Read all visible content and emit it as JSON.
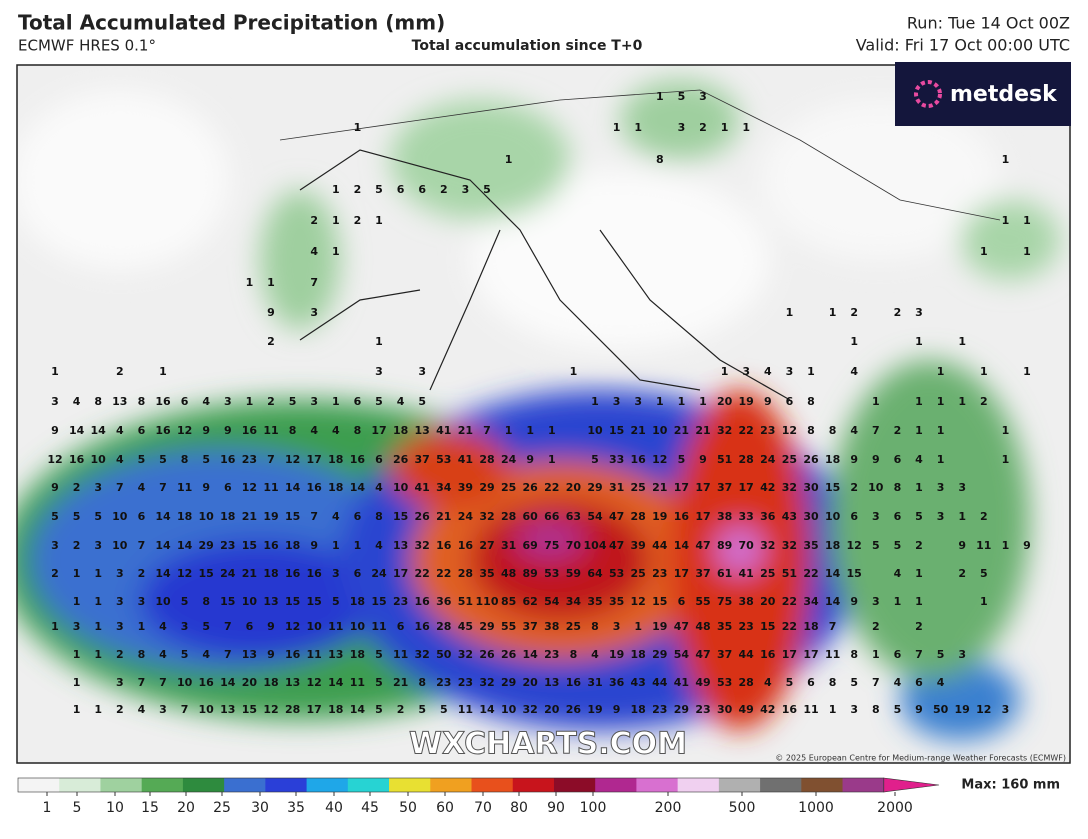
{
  "header": {
    "title": "Total Accumulated Precipitation (mm)",
    "model": "ECMWF HRES 0.1°",
    "subtitle": "Total accumulation since T+0",
    "run": "Run: Tue 14 Oct 00Z",
    "valid": "Valid: Fri 17 Oct 00:00 UTC",
    "brand": "metdesk"
  },
  "map": {
    "watermark": "WXCHARTS.COM",
    "copyright": "© 2025 European Centre for Medium-range Weather Forecasts (ECMWF)",
    "rows": [
      [
        null,
        null,
        null,
        null,
        null,
        null,
        null,
        null,
        null,
        null,
        null,
        null,
        null,
        null,
        null,
        null,
        null,
        null,
        null,
        null,
        null,
        null,
        null,
        null,
        null,
        null,
        null,
        null,
        1,
        5,
        3
      ],
      [
        null,
        null,
        null,
        null,
        null,
        null,
        null,
        null,
        null,
        null,
        null,
        null,
        null,
        null,
        1,
        null,
        null,
        null,
        null,
        null,
        null,
        null,
        null,
        null,
        null,
        null,
        1,
        1,
        null,
        3,
        2,
        1,
        1
      ],
      [
        null,
        null,
        null,
        null,
        null,
        null,
        null,
        null,
        null,
        null,
        null,
        null,
        null,
        null,
        null,
        null,
        null,
        null,
        null,
        null,
        null,
        1,
        null,
        null,
        null,
        null,
        null,
        null,
        8,
        null,
        null,
        null,
        null,
        null,
        null,
        null,
        null,
        null,
        null,
        null,
        null,
        null,
        null,
        null,
        1
      ],
      [
        null,
        null,
        null,
        null,
        null,
        null,
        null,
        null,
        null,
        null,
        null,
        null,
        null,
        1,
        2,
        5,
        6,
        6,
        2,
        3,
        5
      ],
      [
        null,
        null,
        null,
        null,
        null,
        null,
        null,
        null,
        null,
        null,
        null,
        null,
        2,
        1,
        2,
        1,
        null,
        null,
        null,
        null,
        null,
        null,
        null,
        null,
        null,
        null,
        null,
        null,
        null,
        null,
        null,
        null,
        null,
        null,
        null,
        null,
        null,
        null,
        null,
        null,
        null,
        null,
        null,
        null,
        1,
        1
      ],
      [
        null,
        null,
        null,
        null,
        null,
        null,
        null,
        null,
        null,
        null,
        null,
        null,
        4,
        1,
        null,
        null,
        null,
        null,
        null,
        null,
        null,
        null,
        null,
        null,
        null,
        null,
        null,
        null,
        null,
        null,
        null,
        null,
        null,
        null,
        null,
        null,
        null,
        null,
        null,
        null,
        null,
        null,
        null,
        1,
        null,
        1
      ],
      [
        null,
        null,
        null,
        null,
        null,
        null,
        null,
        null,
        null,
        1,
        1,
        null,
        7
      ],
      [
        null,
        null,
        null,
        null,
        null,
        null,
        null,
        null,
        null,
        null,
        9,
        null,
        3,
        null,
        null,
        null,
        null,
        null,
        null,
        null,
        null,
        null,
        null,
        null,
        null,
        null,
        null,
        null,
        null,
        null,
        null,
        null,
        null,
        null,
        1,
        null,
        1,
        2,
        null,
        2,
        3
      ],
      [
        null,
        null,
        null,
        null,
        null,
        null,
        null,
        null,
        null,
        null,
        2,
        null,
        null,
        null,
        null,
        1,
        null,
        null,
        null,
        null,
        null,
        null,
        null,
        null,
        null,
        null,
        null,
        null,
        null,
        null,
        null,
        null,
        null,
        null,
        null,
        null,
        null,
        1,
        null,
        null,
        1,
        null,
        1
      ],
      [
        1,
        null,
        null,
        2,
        null,
        1,
        null,
        null,
        null,
        null,
        null,
        null,
        null,
        null,
        null,
        3,
        null,
        3,
        null,
        null,
        null,
        null,
        null,
        null,
        1,
        null,
        null,
        null,
        null,
        null,
        null,
        1,
        3,
        4,
        3,
        1,
        null,
        4,
        null,
        null,
        null,
        1,
        null,
        1,
        null,
        1
      ],
      [
        3,
        4,
        8,
        13,
        8,
        16,
        6,
        4,
        3,
        1,
        2,
        5,
        3,
        1,
        6,
        5,
        4,
        5,
        null,
        null,
        null,
        null,
        null,
        null,
        null,
        1,
        3,
        3,
        1,
        1,
        1,
        20,
        19,
        9,
        6,
        8,
        null,
        null,
        1,
        null,
        1,
        1,
        1,
        2
      ],
      [
        9,
        14,
        14,
        4,
        6,
        16,
        12,
        9,
        9,
        16,
        11,
        8,
        4,
        4,
        8,
        17,
        18,
        13,
        41,
        21,
        7,
        1,
        1,
        1,
        null,
        10,
        15,
        21,
        10,
        21,
        21,
        32,
        22,
        23,
        12,
        8,
        8,
        4,
        7,
        2,
        1,
        1,
        null,
        null,
        1
      ],
      [
        12,
        16,
        10,
        4,
        5,
        5,
        8,
        5,
        16,
        23,
        7,
        12,
        17,
        18,
        16,
        6,
        26,
        37,
        53,
        41,
        28,
        24,
        9,
        1,
        null,
        5,
        33,
        16,
        12,
        5,
        9,
        51,
        28,
        24,
        25,
        26,
        18,
        9,
        9,
        6,
        4,
        1,
        null,
        null,
        1
      ],
      [
        9,
        2,
        3,
        7,
        4,
        7,
        11,
        9,
        6,
        12,
        11,
        14,
        16,
        18,
        14,
        4,
        10,
        41,
        34,
        39,
        29,
        25,
        26,
        22,
        20,
        29,
        31,
        25,
        21,
        17,
        17,
        37,
        17,
        42,
        32,
        30,
        15,
        2,
        10,
        8,
        1,
        3,
        3
      ],
      [
        5,
        5,
        5,
        10,
        6,
        14,
        18,
        10,
        18,
        21,
        19,
        15,
        7,
        4,
        6,
        8,
        15,
        26,
        21,
        24,
        32,
        28,
        60,
        66,
        63,
        54,
        47,
        28,
        19,
        16,
        17,
        38,
        33,
        36,
        43,
        30,
        10,
        6,
        3,
        6,
        5,
        3,
        1,
        2
      ],
      [
        3,
        2,
        3,
        10,
        7,
        14,
        14,
        29,
        23,
        15,
        16,
        18,
        9,
        1,
        1,
        4,
        13,
        32,
        16,
        16,
        27,
        31,
        69,
        75,
        70,
        104,
        47,
        39,
        44,
        14,
        47,
        89,
        70,
        32,
        32,
        35,
        18,
        12,
        5,
        5,
        2,
        null,
        9,
        11,
        1,
        9
      ],
      [
        2,
        1,
        1,
        3,
        2,
        14,
        12,
        15,
        24,
        21,
        18,
        16,
        16,
        3,
        6,
        24,
        17,
        22,
        22,
        28,
        35,
        48,
        89,
        53,
        59,
        64,
        53,
        25,
        23,
        17,
        37,
        61,
        41,
        25,
        51,
        22,
        14,
        15,
        null,
        4,
        1,
        null,
        2,
        5
      ],
      [
        null,
        1,
        1,
        3,
        3,
        10,
        5,
        8,
        15,
        10,
        13,
        15,
        15,
        5,
        18,
        15,
        23,
        16,
        36,
        51,
        110,
        85,
        62,
        54,
        34,
        35,
        35,
        12,
        15,
        6,
        55,
        75,
        38,
        20,
        22,
        34,
        14,
        9,
        3,
        1,
        1,
        null,
        null,
        1
      ],
      [
        1,
        3,
        1,
        3,
        1,
        4,
        3,
        5,
        7,
        6,
        9,
        12,
        10,
        11,
        10,
        11,
        6,
        16,
        28,
        45,
        29,
        55,
        37,
        38,
        25,
        8,
        3,
        1,
        19,
        47,
        48,
        35,
        23,
        15,
        22,
        18,
        7,
        null,
        2,
        null,
        2
      ],
      [
        null,
        1,
        1,
        2,
        8,
        4,
        5,
        4,
        7,
        13,
        9,
        16,
        11,
        13,
        18,
        5,
        11,
        32,
        50,
        32,
        26,
        26,
        14,
        23,
        8,
        4,
        19,
        18,
        29,
        54,
        47,
        37,
        44,
        16,
        17,
        17,
        11,
        8,
        1,
        6,
        7,
        5,
        3
      ],
      [
        null,
        1,
        null,
        3,
        7,
        7,
        10,
        16,
        14,
        20,
        18,
        13,
        12,
        14,
        11,
        5,
        21,
        8,
        23,
        23,
        32,
        29,
        20,
        13,
        16,
        31,
        36,
        43,
        44,
        41,
        49,
        53,
        28,
        4,
        5,
        6,
        8,
        5,
        7,
        4,
        6,
        4
      ],
      [
        null,
        1,
        1,
        2,
        4,
        3,
        7,
        10,
        13,
        15,
        12,
        28,
        17,
        18,
        14,
        5,
        2,
        5,
        5,
        11,
        14,
        10,
        32,
        20,
        26,
        19,
        9,
        18,
        23,
        29,
        23,
        30,
        49,
        42,
        16,
        11,
        1,
        3,
        8,
        5,
        9,
        50,
        19,
        12,
        3
      ]
    ]
  },
  "colorbar": {
    "ticks": [
      1,
      5,
      10,
      15,
      20,
      25,
      30,
      35,
      40,
      45,
      50,
      60,
      70,
      80,
      90,
      100,
      200,
      500,
      1000,
      2000
    ],
    "max_label": "Max: 160 mm",
    "colors": [
      "#f4f4f4",
      "#d8ecd8",
      "#9fd19f",
      "#55aa55",
      "#2e8b3e",
      "#3a6fd0",
      "#2a3fd8",
      "#1fa7e8",
      "#27d3d3",
      "#e8e032",
      "#f0a020",
      "#e8501c",
      "#c8141c",
      "#8c0c28",
      "#b02890",
      "#d870d0",
      "#f0d0f0",
      "#b0b0b0",
      "#707070",
      "#805030",
      "#9a3a8a",
      "#e0208c"
    ]
  }
}
